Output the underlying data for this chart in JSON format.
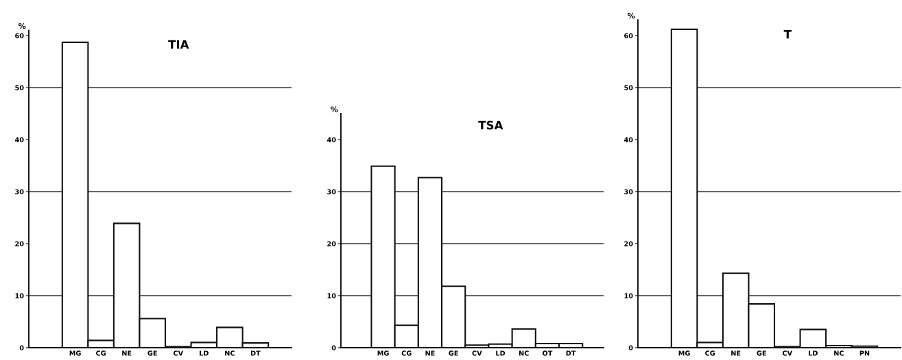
{
  "chart_data": [
    {
      "type": "bar",
      "title": "TIA",
      "ylabel": "%",
      "categories": [
        "MG",
        "CG",
        "NE",
        "GE",
        "CV",
        "LD",
        "NC",
        "DT"
      ],
      "values": [
        58.7,
        1.4,
        23.9,
        5.6,
        0.2,
        1.0,
        3.9,
        0.9
      ],
      "color": "#ffffff",
      "ylim": [
        0,
        61
      ],
      "yticks": [
        0,
        10,
        20,
        30,
        40,
        50,
        60
      ],
      "grid": false,
      "ref_lines": [
        {
          "axis": "y",
          "value": 10,
          "color": "#333333"
        },
        {
          "axis": "y",
          "value": 30,
          "color": "#333333"
        },
        {
          "axis": "y",
          "value": 50,
          "color": "#333333"
        }
      ]
    },
    {
      "type": "bar",
      "title": "TSA",
      "ylabel": "%",
      "categories": [
        "MG",
        "CG",
        "NE",
        "GE",
        "CV",
        "LD",
        "NC",
        "OT",
        "DT"
      ],
      "values": [
        34.9,
        4.3,
        32.7,
        11.8,
        0.5,
        0.7,
        3.6,
        0.8,
        0.8
      ],
      "color": "#ffffff",
      "ylim": [
        0,
        45
      ],
      "yticks": [
        0,
        10,
        20,
        30,
        40
      ],
      "grid": false,
      "ref_lines": [
        {
          "axis": "y",
          "value": 10,
          "color": "#333333"
        },
        {
          "axis": "y",
          "value": 20,
          "color": "#333333"
        },
        {
          "axis": "y",
          "value": 30,
          "color": "#333333"
        }
      ]
    },
    {
      "type": "bar",
      "title": "T",
      "ylabel": "%",
      "categories": [
        "MG",
        "CG",
        "NE",
        "GE",
        "CV",
        "LD",
        "NC",
        "PN"
      ],
      "values": [
        61.2,
        1.0,
        14.3,
        8.4,
        0.2,
        3.5,
        0.4,
        0.3
      ],
      "color": "#ffffff",
      "ylim": [
        0,
        63
      ],
      "yticks": [
        0,
        10,
        20,
        30,
        40,
        50,
        60
      ],
      "grid": false,
      "ref_lines": [
        {
          "axis": "y",
          "value": 10,
          "color": "#333333"
        },
        {
          "axis": "y",
          "value": 30,
          "color": "#333333"
        },
        {
          "axis": "y",
          "value": 50,
          "color": "#333333"
        }
      ]
    }
  ]
}
